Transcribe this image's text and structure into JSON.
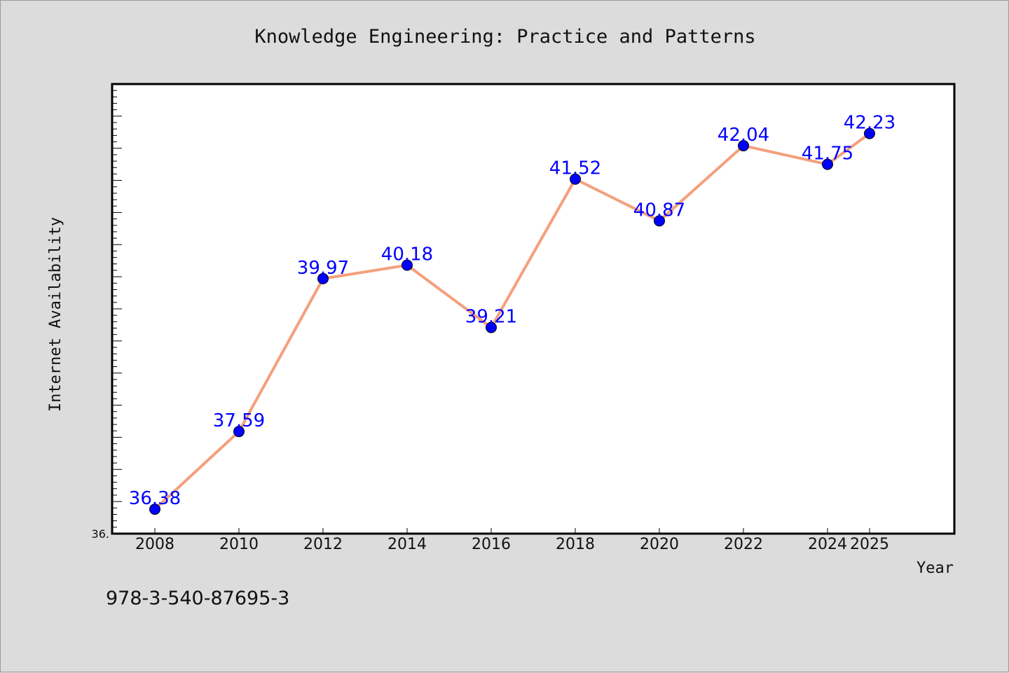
{
  "chart_data": {
    "type": "line",
    "title": "Knowledge Engineering: Practice and Patterns",
    "xlabel": "Year",
    "ylabel": "Internet Availability",
    "x": [
      "2008",
      "2010",
      "2012",
      "2014",
      "2016",
      "2018",
      "2020",
      "2022",
      "2024",
      "2025"
    ],
    "series": [
      {
        "values": [
          36.38,
          37.59,
          39.97,
          40.18,
          39.21,
          41.52,
          40.87,
          42.04,
          41.75,
          42.23
        ]
      }
    ],
    "data_labels": [
      "36.38",
      "37.59",
      "39.97",
      "40.18",
      "39.21",
      "41.52",
      "40.87",
      "42.04",
      "41.75",
      "42.23"
    ],
    "ylim": [
      36.0,
      43.0
    ],
    "ytick_labels": [
      "36."
    ],
    "grid": false,
    "line_color": "#f4a07c",
    "marker_color": "#0000ff",
    "label_color": "#0000ff"
  },
  "footer": {
    "isbn": "978-3-540-87695-3"
  }
}
